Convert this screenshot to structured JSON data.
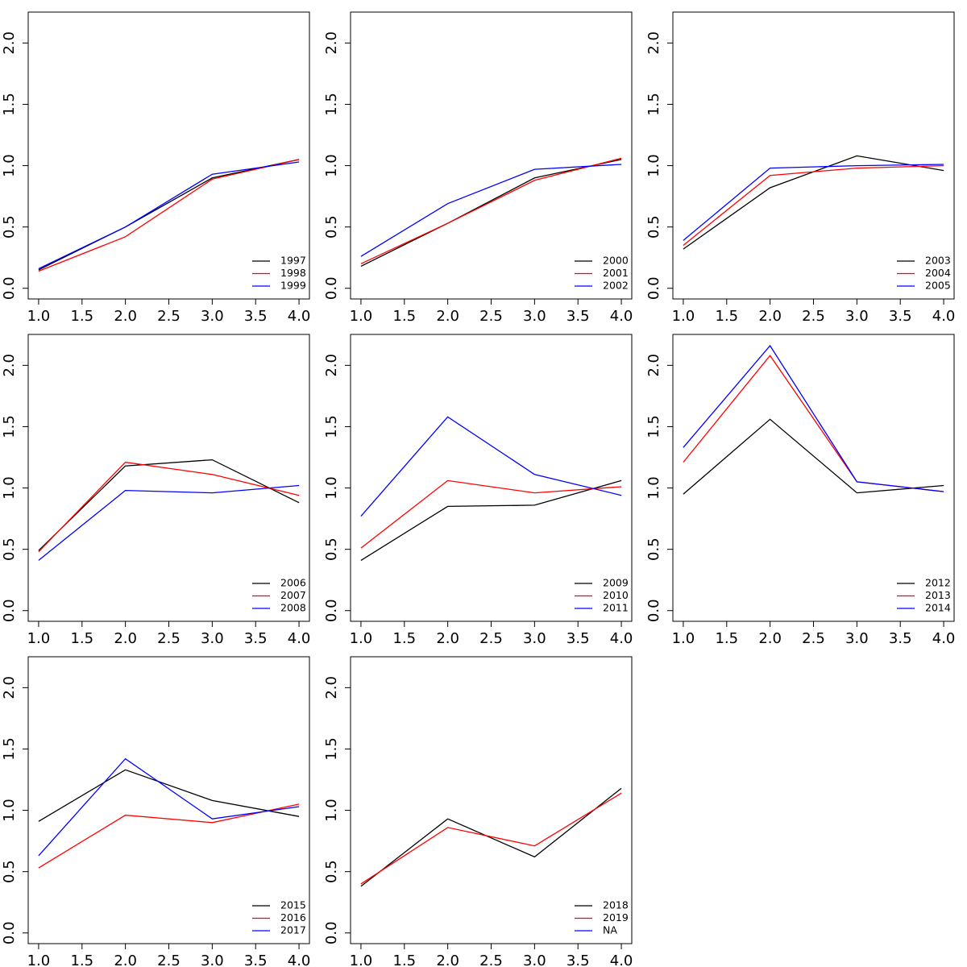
{
  "chart_data": [
    {
      "type": "line",
      "x": [
        1,
        2,
        3,
        4
      ],
      "xlim": [
        0.88,
        4.12
      ],
      "ylim": [
        -0.087,
        2.252
      ],
      "legend": "bottomright",
      "xticks": [
        {
          "value": 1,
          "label": "1.0"
        },
        {
          "value": 1.5,
          "label": "1.5"
        },
        {
          "value": 2,
          "label": "2.0"
        },
        {
          "value": 2.5,
          "label": "2.5"
        },
        {
          "value": 3,
          "label": "3.0"
        },
        {
          "value": 3.5,
          "label": "3.5"
        },
        {
          "value": 4,
          "label": "4.0"
        }
      ],
      "yticks": [
        {
          "value": 0,
          "label": "0.0"
        },
        {
          "value": 0.5,
          "label": "0.5"
        },
        {
          "value": 1,
          "label": "1.0"
        },
        {
          "value": 1.5,
          "label": "1.5"
        },
        {
          "value": 2,
          "label": "2.0"
        }
      ],
      "series": [
        {
          "name": "1997",
          "color": "#000000",
          "values": [
            0.15,
            0.5,
            0.9,
            1.05
          ]
        },
        {
          "name": "1998",
          "color": "#ff0000",
          "values": [
            0.14,
            0.42,
            0.89,
            1.05
          ]
        },
        {
          "name": "1999",
          "color": "#0000ff",
          "values": [
            0.16,
            0.5,
            0.93,
            1.03
          ]
        }
      ]
    },
    {
      "type": "line",
      "x": [
        1,
        2,
        3,
        4
      ],
      "xlim": [
        0.88,
        4.12
      ],
      "ylim": [
        -0.087,
        2.252
      ],
      "legend": "bottomright",
      "xticks": [
        {
          "value": 1,
          "label": "1.0"
        },
        {
          "value": 1.5,
          "label": "1.5"
        },
        {
          "value": 2,
          "label": "2.0"
        },
        {
          "value": 2.5,
          "label": "2.5"
        },
        {
          "value": 3,
          "label": "3.0"
        },
        {
          "value": 3.5,
          "label": "3.5"
        },
        {
          "value": 4,
          "label": "4.0"
        }
      ],
      "yticks": [
        {
          "value": 0,
          "label": "0.0"
        },
        {
          "value": 0.5,
          "label": "0.5"
        },
        {
          "value": 1,
          "label": "1.0"
        },
        {
          "value": 1.5,
          "label": "1.5"
        },
        {
          "value": 2,
          "label": "2.0"
        }
      ],
      "series": [
        {
          "name": "2000",
          "color": "#000000",
          "values": [
            0.18,
            0.53,
            0.9,
            1.05
          ]
        },
        {
          "name": "2001",
          "color": "#ff0000",
          "values": [
            0.2,
            0.53,
            0.88,
            1.06
          ]
        },
        {
          "name": "2002",
          "color": "#0000ff",
          "values": [
            0.26,
            0.69,
            0.97,
            1.01
          ]
        }
      ]
    },
    {
      "type": "line",
      "x": [
        1,
        2,
        3,
        4
      ],
      "xlim": [
        0.88,
        4.12
      ],
      "ylim": [
        -0.087,
        2.252
      ],
      "legend": "bottomright",
      "xticks": [
        {
          "value": 1,
          "label": "1.0"
        },
        {
          "value": 1.5,
          "label": "1.5"
        },
        {
          "value": 2,
          "label": "2.0"
        },
        {
          "value": 2.5,
          "label": "2.5"
        },
        {
          "value": 3,
          "label": "3.0"
        },
        {
          "value": 3.5,
          "label": "3.5"
        },
        {
          "value": 4,
          "label": "4.0"
        }
      ],
      "yticks": [
        {
          "value": 0,
          "label": "0.0"
        },
        {
          "value": 0.5,
          "label": "0.5"
        },
        {
          "value": 1,
          "label": "1.0"
        },
        {
          "value": 1.5,
          "label": "1.5"
        },
        {
          "value": 2,
          "label": "2.0"
        }
      ],
      "series": [
        {
          "name": "2003",
          "color": "#000000",
          "values": [
            0.32,
            0.82,
            1.08,
            0.96
          ]
        },
        {
          "name": "2004",
          "color": "#ff0000",
          "values": [
            0.35,
            0.92,
            0.98,
            1.0
          ]
        },
        {
          "name": "2005",
          "color": "#0000ff",
          "values": [
            0.39,
            0.98,
            1.0,
            1.01
          ]
        }
      ]
    },
    {
      "type": "line",
      "x": [
        1,
        2,
        3,
        4
      ],
      "xlim": [
        0.88,
        4.12
      ],
      "ylim": [
        -0.087,
        2.252
      ],
      "legend": "bottomright",
      "xticks": [
        {
          "value": 1,
          "label": "1.0"
        },
        {
          "value": 1.5,
          "label": "1.5"
        },
        {
          "value": 2,
          "label": "2.0"
        },
        {
          "value": 2.5,
          "label": "2.5"
        },
        {
          "value": 3,
          "label": "3.0"
        },
        {
          "value": 3.5,
          "label": "3.5"
        },
        {
          "value": 4,
          "label": "4.0"
        }
      ],
      "yticks": [
        {
          "value": 0,
          "label": "0.0"
        },
        {
          "value": 0.5,
          "label": "0.5"
        },
        {
          "value": 1,
          "label": "1.0"
        },
        {
          "value": 1.5,
          "label": "1.5"
        },
        {
          "value": 2,
          "label": "2.0"
        }
      ],
      "series": [
        {
          "name": "2006",
          "color": "#000000",
          "values": [
            0.49,
            1.18,
            1.23,
            0.88
          ]
        },
        {
          "name": "2007",
          "color": "#ff0000",
          "values": [
            0.48,
            1.21,
            1.11,
            0.94
          ]
        },
        {
          "name": "2008",
          "color": "#0000ff",
          "values": [
            0.41,
            0.98,
            0.96,
            1.02
          ]
        }
      ]
    },
    {
      "type": "line",
      "x": [
        1,
        2,
        3,
        4
      ],
      "xlim": [
        0.88,
        4.12
      ],
      "ylim": [
        -0.087,
        2.252
      ],
      "legend": "bottomright",
      "xticks": [
        {
          "value": 1,
          "label": "1.0"
        },
        {
          "value": 1.5,
          "label": "1.5"
        },
        {
          "value": 2,
          "label": "2.0"
        },
        {
          "value": 2.5,
          "label": "2.5"
        },
        {
          "value": 3,
          "label": "3.0"
        },
        {
          "value": 3.5,
          "label": "3.5"
        },
        {
          "value": 4,
          "label": "4.0"
        }
      ],
      "yticks": [
        {
          "value": 0,
          "label": "0.0"
        },
        {
          "value": 0.5,
          "label": "0.5"
        },
        {
          "value": 1,
          "label": "1.0"
        },
        {
          "value": 1.5,
          "label": "1.5"
        },
        {
          "value": 2,
          "label": "2.0"
        }
      ],
      "series": [
        {
          "name": "2009",
          "color": "#000000",
          "values": [
            0.41,
            0.85,
            0.86,
            1.06
          ]
        },
        {
          "name": "2010",
          "color": "#ff0000",
          "values": [
            0.51,
            1.06,
            0.96,
            1.01
          ]
        },
        {
          "name": "2011",
          "color": "#0000ff",
          "values": [
            0.77,
            1.58,
            1.11,
            0.94
          ]
        }
      ]
    },
    {
      "type": "line",
      "x": [
        1,
        2,
        3,
        4
      ],
      "xlim": [
        0.88,
        4.12
      ],
      "ylim": [
        -0.087,
        2.252
      ],
      "legend": "bottomright",
      "xticks": [
        {
          "value": 1,
          "label": "1.0"
        },
        {
          "value": 1.5,
          "label": "1.5"
        },
        {
          "value": 2,
          "label": "2.0"
        },
        {
          "value": 2.5,
          "label": "2.5"
        },
        {
          "value": 3,
          "label": "3.0"
        },
        {
          "value": 3.5,
          "label": "3.5"
        },
        {
          "value": 4,
          "label": "4.0"
        }
      ],
      "yticks": [
        {
          "value": 0,
          "label": "0.0"
        },
        {
          "value": 0.5,
          "label": "0.5"
        },
        {
          "value": 1,
          "label": "1.0"
        },
        {
          "value": 1.5,
          "label": "1.5"
        },
        {
          "value": 2,
          "label": "2.0"
        }
      ],
      "series": [
        {
          "name": "2012",
          "color": "#000000",
          "values": [
            0.95,
            1.56,
            0.96,
            1.02
          ]
        },
        {
          "name": "2013",
          "color": "#ff0000",
          "values": [
            1.21,
            2.08,
            1.05,
            0.97
          ]
        },
        {
          "name": "2014",
          "color": "#0000ff",
          "values": [
            1.33,
            2.16,
            1.05,
            0.97
          ]
        }
      ]
    },
    {
      "type": "line",
      "x": [
        1,
        2,
        3,
        4
      ],
      "xlim": [
        0.88,
        4.12
      ],
      "ylim": [
        -0.087,
        2.252
      ],
      "legend": "bottomright",
      "xticks": [
        {
          "value": 1,
          "label": "1.0"
        },
        {
          "value": 1.5,
          "label": "1.5"
        },
        {
          "value": 2,
          "label": "2.0"
        },
        {
          "value": 2.5,
          "label": "2.5"
        },
        {
          "value": 3,
          "label": "3.0"
        },
        {
          "value": 3.5,
          "label": "3.5"
        },
        {
          "value": 4,
          "label": "4.0"
        }
      ],
      "yticks": [
        {
          "value": 0,
          "label": "0.0"
        },
        {
          "value": 0.5,
          "label": "0.5"
        },
        {
          "value": 1,
          "label": "1.0"
        },
        {
          "value": 1.5,
          "label": "1.5"
        },
        {
          "value": 2,
          "label": "2.0"
        }
      ],
      "series": [
        {
          "name": "2015",
          "color": "#000000",
          "values": [
            0.91,
            1.33,
            1.08,
            0.95
          ]
        },
        {
          "name": "2016",
          "color": "#ff0000",
          "values": [
            0.53,
            0.96,
            0.9,
            1.05
          ]
        },
        {
          "name": "2017",
          "color": "#0000ff",
          "values": [
            0.63,
            1.42,
            0.93,
            1.03
          ]
        }
      ]
    },
    {
      "type": "line",
      "x": [
        1,
        2,
        3,
        4
      ],
      "xlim": [
        0.88,
        4.12
      ],
      "ylim": [
        -0.087,
        2.252
      ],
      "legend": "bottomright",
      "xticks": [
        {
          "value": 1,
          "label": "1.0"
        },
        {
          "value": 1.5,
          "label": "1.5"
        },
        {
          "value": 2,
          "label": "2.0"
        },
        {
          "value": 2.5,
          "label": "2.5"
        },
        {
          "value": 3,
          "label": "3.0"
        },
        {
          "value": 3.5,
          "label": "3.5"
        },
        {
          "value": 4,
          "label": "4.0"
        }
      ],
      "yticks": [
        {
          "value": 0,
          "label": "0.0"
        },
        {
          "value": 0.5,
          "label": "0.5"
        },
        {
          "value": 1,
          "label": "1.0"
        },
        {
          "value": 1.5,
          "label": "1.5"
        },
        {
          "value": 2,
          "label": "2.0"
        }
      ],
      "series": [
        {
          "name": "2018",
          "color": "#000000",
          "values": [
            0.38,
            0.93,
            0.62,
            1.18
          ]
        },
        {
          "name": "2019",
          "color": "#ff0000",
          "values": [
            0.4,
            0.86,
            0.71,
            1.14
          ]
        },
        {
          "name": "NA",
          "color": "#0000ff",
          "values": [
            null,
            null,
            null,
            null
          ]
        }
      ]
    }
  ]
}
